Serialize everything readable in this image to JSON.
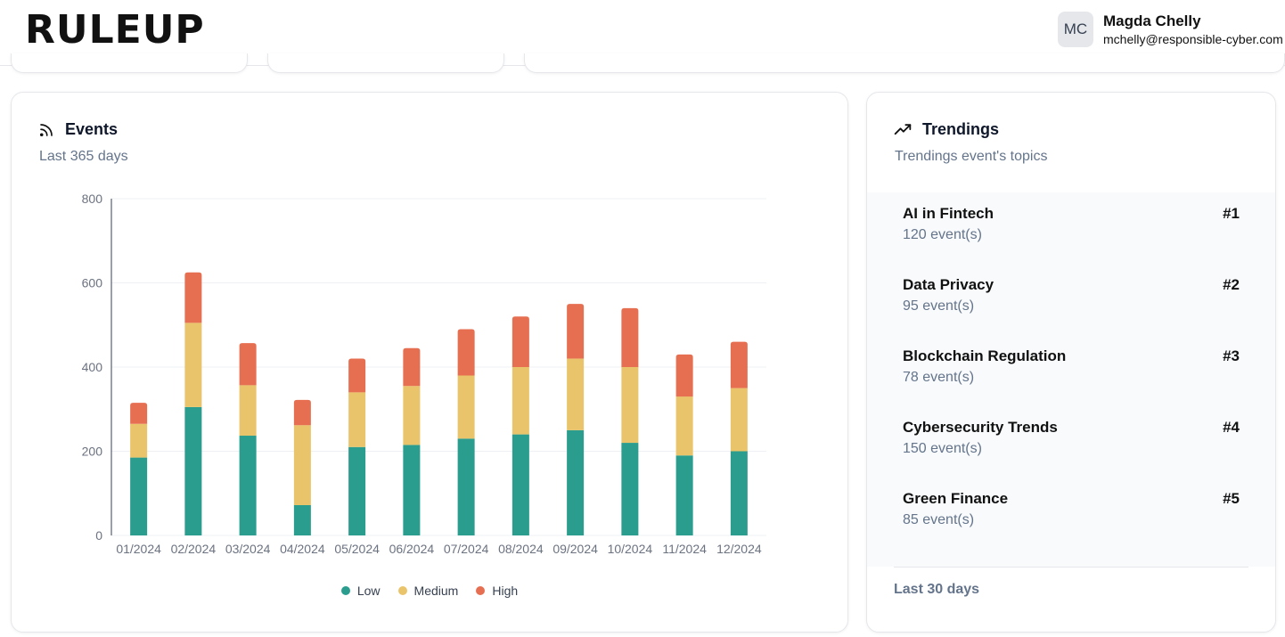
{
  "brand": {
    "logo_text": "RULEUP"
  },
  "user": {
    "initials": "MC",
    "name": "Magda Chelly",
    "email": "mchelly@responsible-cyber.com"
  },
  "events_card": {
    "title": "Events",
    "subtitle": "Last 365 days",
    "icon": "rss-icon"
  },
  "trendings_card": {
    "title": "Trendings",
    "subtitle": "Trendings event's topics",
    "icon": "trending-up-icon",
    "items": [
      {
        "name": "AI in Fintech",
        "rank": "#1",
        "count": "120 event(s)"
      },
      {
        "name": "Data Privacy",
        "rank": "#2",
        "count": "95 event(s)"
      },
      {
        "name": "Blockchain Regulation",
        "rank": "#3",
        "count": "78 event(s)"
      },
      {
        "name": "Cybersecurity Trends",
        "rank": "#4",
        "count": "150 event(s)"
      },
      {
        "name": "Green Finance",
        "rank": "#5",
        "count": "85 event(s)"
      }
    ],
    "footer": "Last 30 days"
  },
  "colors": {
    "low": "#2a9d8f",
    "medium": "#e9c46a",
    "high": "#e76f51"
  },
  "chart_data": {
    "type": "bar",
    "stacked": true,
    "categories": [
      "01/2024",
      "02/2024",
      "03/2024",
      "04/2024",
      "05/2024",
      "06/2024",
      "07/2024",
      "08/2024",
      "09/2024",
      "10/2024",
      "11/2024",
      "12/2024"
    ],
    "series": [
      {
        "name": "Low",
        "values": [
          185,
          305,
          237,
          72,
          210,
          215,
          230,
          240,
          250,
          220,
          190,
          200
        ]
      },
      {
        "name": "Medium",
        "values": [
          80,
          200,
          120,
          190,
          130,
          140,
          150,
          160,
          170,
          180,
          140,
          150
        ]
      },
      {
        "name": "High",
        "values": [
          50,
          120,
          100,
          60,
          80,
          90,
          110,
          120,
          130,
          140,
          100,
          110
        ]
      }
    ],
    "ylim": [
      0,
      800
    ],
    "yticks": [
      0,
      200,
      400,
      600,
      800
    ],
    "grid": true,
    "legend_position": "bottom"
  }
}
